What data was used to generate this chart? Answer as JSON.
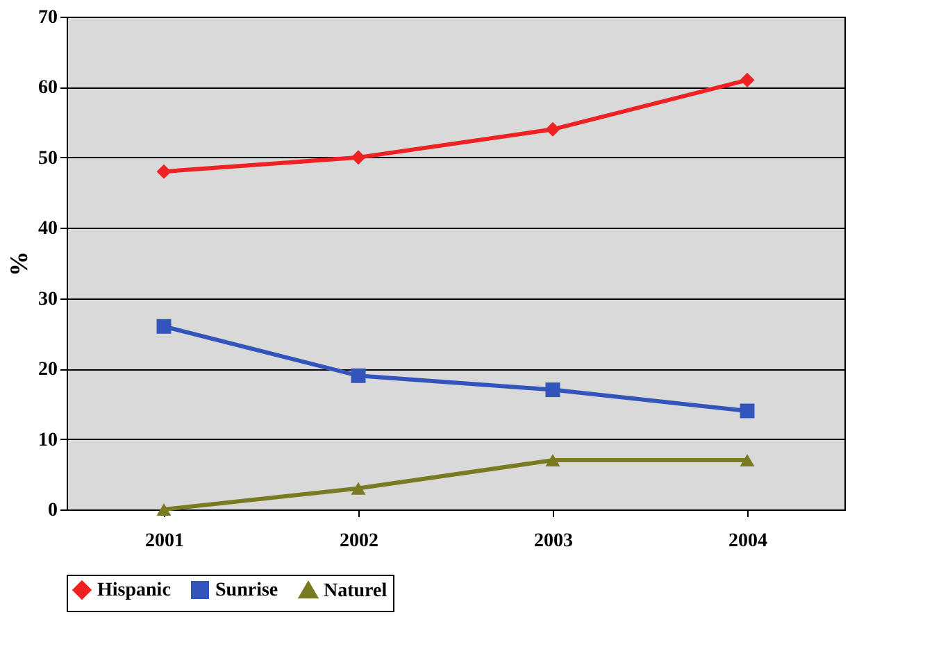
{
  "chart_data": {
    "type": "line",
    "ylabel": "%",
    "categories": [
      "2001",
      "2002",
      "2003",
      "2004"
    ],
    "series": [
      {
        "name": "Hispanic",
        "color": "#ee2222",
        "marker": "diamond",
        "values": [
          48,
          50,
          54,
          61
        ]
      },
      {
        "name": "Sunrise",
        "color": "#3355bb",
        "marker": "square",
        "values": [
          26,
          19,
          17,
          14
        ]
      },
      {
        "name": "Naturel",
        "color": "#7a7a22",
        "marker": "triangle",
        "values": [
          0,
          3,
          7,
          7
        ]
      }
    ],
    "ylim": [
      0,
      70
    ],
    "yticks": [
      0,
      10,
      20,
      30,
      40,
      50,
      60,
      70
    ],
    "grid": "y",
    "legend": "bottom"
  }
}
